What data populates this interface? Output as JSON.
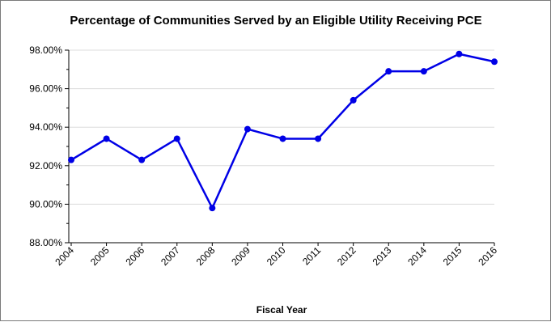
{
  "chart_data": {
    "type": "line",
    "title": "Percentage of Communities Served by an Eligible Utility Receiving PCE",
    "xlabel": "Fiscal Year",
    "ylabel": "",
    "categories": [
      "2004",
      "2005",
      "2006",
      "2007",
      "2008",
      "2009",
      "2010",
      "2011",
      "2012",
      "2013",
      "2014",
      "2015",
      "2016"
    ],
    "series": [
      {
        "values": [
          92.3,
          93.4,
          92.3,
          93.4,
          89.8,
          93.9,
          93.4,
          93.4,
          95.4,
          96.9,
          96.9,
          97.8,
          97.4
        ]
      }
    ],
    "ylim": [
      88,
      98
    ],
    "yticks": [
      88,
      90,
      92,
      94,
      96,
      98
    ],
    "ytick_labels": [
      "88.00%",
      "90.00%",
      "92.00%",
      "94.00%",
      "96.00%",
      "98.00%"
    ],
    "grid": true,
    "line_color": "#0000e6",
    "grid_color": "#dcdcdc"
  }
}
